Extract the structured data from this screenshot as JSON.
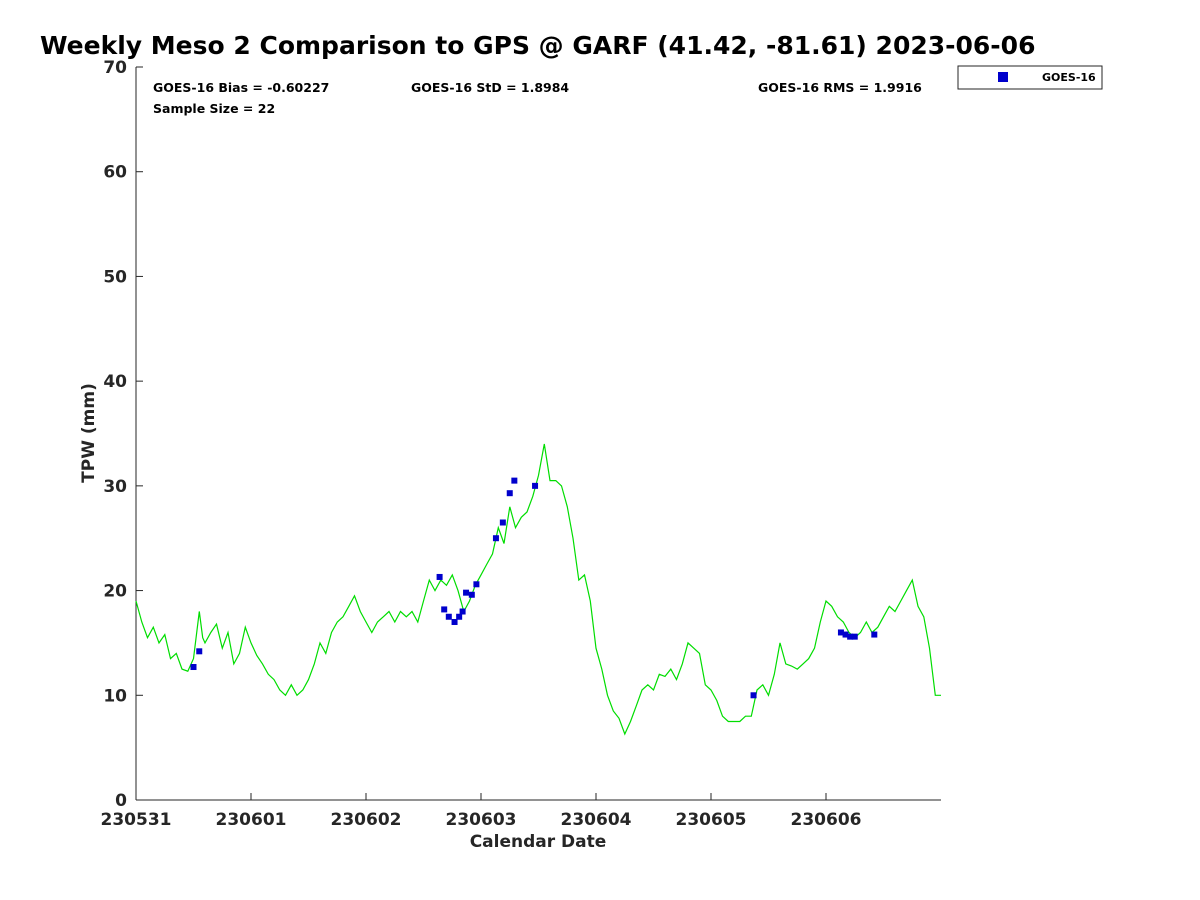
{
  "chart_data": {
    "type": "line",
    "title": "Weekly Meso 2 Comparison to GPS @ GARF (41.42, -81.61) 2023-06-06",
    "xlabel": "Calendar Date",
    "ylabel": "TPW (mm)",
    "xlim": [
      0,
      7
    ],
    "ylim": [
      0,
      70
    ],
    "x_tick_values": [
      0,
      1,
      2,
      3,
      4,
      5,
      6
    ],
    "x_tick_labels": [
      "230531",
      "230601",
      "230602",
      "230603",
      "230604",
      "230605",
      "230606"
    ],
    "y_ticks": [
      0,
      10,
      20,
      30,
      40,
      50,
      60,
      70
    ],
    "grid": false,
    "legend_placement": "outside-top-right",
    "stats": {
      "bias": "GOES-16 Bias = -0.60227",
      "std": "GOES-16 StD = 1.8984",
      "rms": "GOES-16 RMS = 1.9916",
      "sample": "Sample Size = 22"
    },
    "series": [
      {
        "role": "gps",
        "color": "#00dd00",
        "x": [
          0.0,
          0.05,
          0.1,
          0.15,
          0.2,
          0.25,
          0.3,
          0.35,
          0.4,
          0.45,
          0.5,
          0.55,
          0.58,
          0.6,
          0.65,
          0.7,
          0.75,
          0.8,
          0.85,
          0.9,
          0.95,
          1.0,
          1.05,
          1.1,
          1.15,
          1.2,
          1.25,
          1.3,
          1.35,
          1.4,
          1.45,
          1.5,
          1.55,
          1.6,
          1.65,
          1.7,
          1.75,
          1.8,
          1.85,
          1.9,
          1.95,
          2.0,
          2.05,
          2.1,
          2.15,
          2.2,
          2.25,
          2.3,
          2.35,
          2.4,
          2.45,
          2.5,
          2.55,
          2.6,
          2.65,
          2.7,
          2.75,
          2.8,
          2.85,
          2.9,
          2.95,
          3.0,
          3.05,
          3.1,
          3.15,
          3.2,
          3.25,
          3.3,
          3.35,
          3.4,
          3.45,
          3.5,
          3.55,
          3.6,
          3.65,
          3.7,
          3.75,
          3.8,
          3.85,
          3.9,
          3.95,
          4.0,
          4.05,
          4.1,
          4.15,
          4.2,
          4.25,
          4.3,
          4.35,
          4.4,
          4.45,
          4.5,
          4.55,
          4.6,
          4.65,
          4.7,
          4.75,
          4.8,
          4.85,
          4.9,
          4.95,
          5.0,
          5.05,
          5.1,
          5.15,
          5.2,
          5.25,
          5.3,
          5.35,
          5.4,
          5.45,
          5.5,
          5.55,
          5.6,
          5.65,
          5.7,
          5.75,
          5.8,
          5.85,
          5.9,
          5.95,
          6.0,
          6.05,
          6.1,
          6.15,
          6.2,
          6.25,
          6.3,
          6.35,
          6.4,
          6.45,
          6.5,
          6.55,
          6.6,
          6.65,
          6.7,
          6.75,
          6.8,
          6.85,
          6.9,
          6.95,
          7.0
        ],
        "y": [
          19.0,
          17.0,
          15.5,
          16.5,
          15.0,
          15.8,
          13.5,
          14.0,
          12.5,
          12.3,
          13.5,
          18.0,
          15.5,
          15.0,
          16.0,
          16.8,
          14.5,
          16.0,
          13.0,
          14.0,
          16.5,
          15.0,
          13.8,
          13.0,
          12.0,
          11.5,
          10.5,
          10.0,
          11.0,
          10.0,
          10.5,
          11.5,
          13.0,
          15.0,
          14.0,
          16.0,
          17.0,
          17.5,
          18.5,
          19.5,
          18.0,
          17.0,
          16.0,
          17.0,
          17.5,
          18.0,
          17.0,
          18.0,
          17.5,
          18.0,
          17.0,
          19.0,
          21.0,
          20.0,
          21.0,
          20.5,
          21.5,
          20.0,
          18.0,
          19.0,
          20.5,
          21.5,
          22.5,
          23.5,
          26.0,
          24.5,
          28.0,
          26.0,
          27.0,
          27.5,
          29.0,
          31.0,
          34.0,
          30.5,
          30.5,
          30.0,
          28.0,
          25.0,
          21.0,
          21.5,
          19.0,
          14.5,
          12.5,
          10.0,
          8.5,
          7.8,
          6.3,
          7.5,
          9.0,
          10.5,
          11.0,
          10.5,
          12.0,
          11.8,
          12.5,
          11.5,
          13.0,
          15.0,
          14.5,
          14.0,
          11.0,
          10.5,
          9.5,
          8.0,
          7.5,
          7.5,
          7.5,
          8.0,
          8.0,
          10.5,
          11.0,
          10.0,
          12.0,
          15.0,
          13.0,
          12.8,
          12.5,
          13.0,
          13.5,
          14.5,
          17.0,
          19.0,
          18.5,
          17.5,
          17.0,
          16.0,
          15.5,
          16.0,
          17.0,
          16.0,
          16.5,
          17.5,
          18.5,
          18.0,
          19.0,
          20.0,
          21.0,
          18.5,
          17.5,
          14.5,
          10.0,
          10.0
        ]
      },
      {
        "name": "GOES-16",
        "role": "satellite",
        "color": "#0000cc",
        "x": [
          0.5,
          0.55,
          2.64,
          2.68,
          2.72,
          2.77,
          2.81,
          2.84,
          2.87,
          2.92,
          2.96,
          3.13,
          3.19,
          3.25,
          3.29,
          3.47,
          5.37,
          6.13,
          6.17,
          6.21,
          6.25,
          6.42
        ],
        "y": [
          12.7,
          14.2,
          21.3,
          18.2,
          17.5,
          17.0,
          17.5,
          18.0,
          19.8,
          19.6,
          20.6,
          25.0,
          26.5,
          29.3,
          30.5,
          30.0,
          10.0,
          16.0,
          15.8,
          15.6,
          15.6,
          15.8
        ]
      }
    ]
  }
}
